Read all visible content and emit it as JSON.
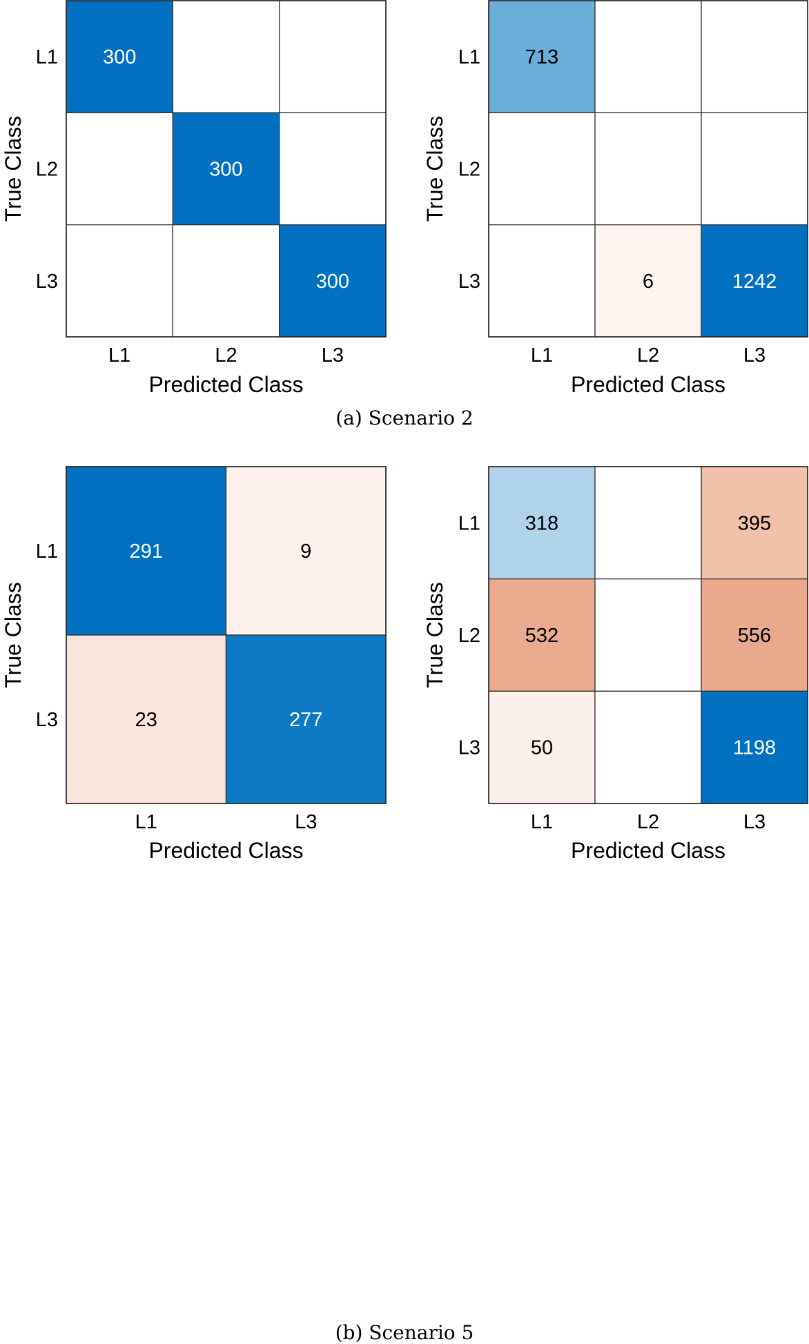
{
  "captions": {
    "a": "(a) Scenario 2",
    "b": "(b) Scenario 5"
  },
  "chart_data": [
    {
      "type": "heatmap",
      "xlabel": "Predicted Class",
      "ylabel": "True Class",
      "x_categories": [
        "L1",
        "L2",
        "L3"
      ],
      "y_categories": [
        "L1",
        "L2",
        "L3"
      ],
      "values": [
        [
          300,
          null,
          null
        ],
        [
          null,
          300,
          null
        ],
        [
          null,
          null,
          300
        ]
      ],
      "cell_colors": [
        [
          "#0070c0",
          "#ffffff",
          "#ffffff"
        ],
        [
          "#ffffff",
          "#0070c0",
          "#ffffff"
        ],
        [
          "#ffffff",
          "#ffffff",
          "#0070c0"
        ]
      ],
      "text_colors": [
        [
          "#ffffff",
          "#000000",
          "#000000"
        ],
        [
          "#000000",
          "#ffffff",
          "#000000"
        ],
        [
          "#000000",
          "#000000",
          "#ffffff"
        ]
      ]
    },
    {
      "type": "heatmap",
      "xlabel": "Predicted Class",
      "ylabel": "True Class",
      "x_categories": [
        "L1",
        "L2",
        "L3"
      ],
      "y_categories": [
        "L1",
        "L2",
        "L3"
      ],
      "values": [
        [
          713,
          null,
          null
        ],
        [
          null,
          null,
          null
        ],
        [
          null,
          6,
          1242
        ]
      ],
      "cell_colors": [
        [
          "#6aaed9",
          "#ffffff",
          "#ffffff"
        ],
        [
          "#ffffff",
          "#ffffff",
          "#ffffff"
        ],
        [
          "#ffffff",
          "#fdf3ef",
          "#0070c0"
        ]
      ],
      "text_colors": [
        [
          "#000000",
          "#000000",
          "#000000"
        ],
        [
          "#000000",
          "#000000",
          "#000000"
        ],
        [
          "#000000",
          "#000000",
          "#ffffff"
        ]
      ]
    },
    {
      "type": "heatmap",
      "xlabel": "Predicted Class",
      "ylabel": "True Class",
      "x_categories": [
        "L1",
        "L3"
      ],
      "y_categories": [
        "L1",
        "L3"
      ],
      "values": [
        [
          291,
          9
        ],
        [
          23,
          277
        ]
      ],
      "cell_colors": [
        [
          "#0070c0",
          "#fcf1ed"
        ],
        [
          "#f9e5dc",
          "#0d78c3"
        ]
      ],
      "text_colors": [
        [
          "#ffffff",
          "#000000"
        ],
        [
          "#000000",
          "#ffffff"
        ]
      ]
    },
    {
      "type": "heatmap",
      "xlabel": "Predicted Class",
      "ylabel": "True Class",
      "x_categories": [
        "L1",
        "L2",
        "L3"
      ],
      "y_categories": [
        "L1",
        "L2",
        "L3"
      ],
      "values": [
        [
          318,
          null,
          395
        ],
        [
          532,
          null,
          556
        ],
        [
          50,
          null,
          1198
        ]
      ],
      "cell_colors": [
        [
          "#b0d3ea",
          "#ffffff",
          "#f1c1a9"
        ],
        [
          "#ecab8f",
          "#ffffff",
          "#eaa98c"
        ],
        [
          "#fbefe9",
          "#ffffff",
          "#0070c0"
        ]
      ],
      "text_colors": [
        [
          "#000000",
          "#000000",
          "#000000"
        ],
        [
          "#000000",
          "#000000",
          "#000000"
        ],
        [
          "#000000",
          "#000000",
          "#ffffff"
        ]
      ]
    }
  ]
}
